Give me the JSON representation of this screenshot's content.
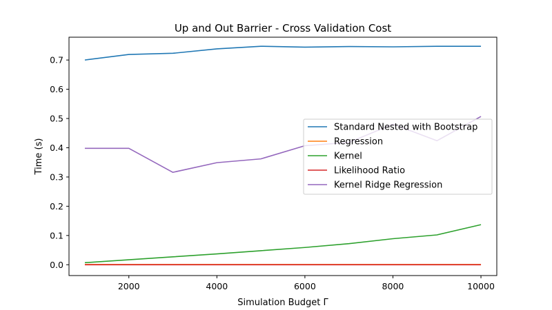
{
  "chart_data": {
    "type": "line",
    "title": "Up and Out Barrier - Cross Validation Cost",
    "xlabel": "Simulation Budget Γ",
    "ylabel": "Time (s)",
    "xlim": [
      640,
      10360
    ],
    "ylim": [
      -0.037,
      0.778
    ],
    "xticks": [
      2000,
      4000,
      6000,
      8000,
      10000
    ],
    "xtick_labels": [
      "2000",
      "4000",
      "6000",
      "8000",
      "10000"
    ],
    "yticks": [
      0.0,
      0.1,
      0.2,
      0.3,
      0.4,
      0.5,
      0.6,
      0.7
    ],
    "ytick_labels": [
      "0.0",
      "0.1",
      "0.2",
      "0.3",
      "0.4",
      "0.5",
      "0.6",
      "0.7"
    ],
    "grid": false,
    "legend_position": "center-right",
    "x": [
      1000,
      2000,
      3000,
      4000,
      5000,
      6000,
      7000,
      8000,
      9000,
      10000
    ],
    "series": [
      {
        "name": "Standard Nested with Bootstrap",
        "color": "#1f77b4",
        "values": [
          0.7,
          0.719,
          0.723,
          0.738,
          0.747,
          0.744,
          0.746,
          0.745,
          0.747,
          0.747
        ]
      },
      {
        "name": "Regression",
        "color": "#ff7f0e",
        "values": [
          0.001,
          0.001,
          0.001,
          0.001,
          0.001,
          0.001,
          0.001,
          0.001,
          0.001,
          0.001
        ]
      },
      {
        "name": "Kernel",
        "color": "#2ca02c",
        "values": [
          0.007,
          0.017,
          0.027,
          0.037,
          0.048,
          0.059,
          0.072,
          0.089,
          0.102,
          0.137
        ]
      },
      {
        "name": "Likelihood Ratio",
        "color": "#d62728",
        "values": [
          0.0,
          0.0,
          0.0,
          0.0,
          0.0,
          0.0,
          0.0,
          0.0,
          0.0,
          0.0
        ]
      },
      {
        "name": "Kernel Ridge Regression",
        "color": "#9467bd",
        "values": [
          0.398,
          0.398,
          0.316,
          0.349,
          0.362,
          0.407,
          0.418,
          0.481,
          0.424,
          0.507
        ]
      }
    ]
  }
}
